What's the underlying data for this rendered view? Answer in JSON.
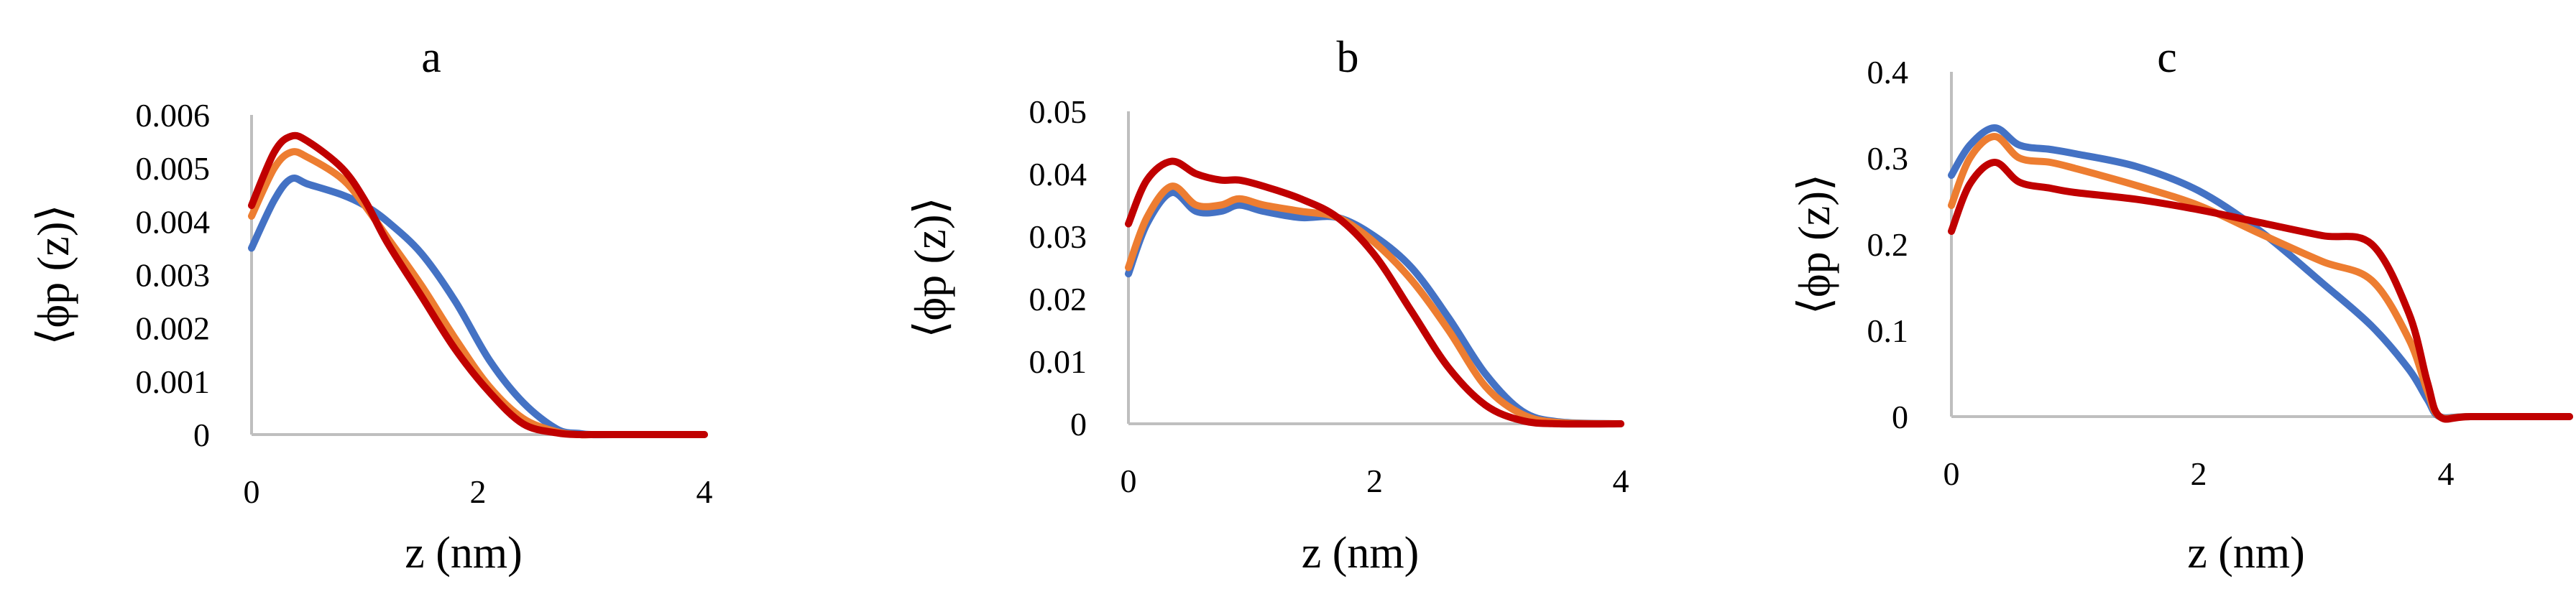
{
  "chart_data": [
    {
      "type": "line",
      "title": "a",
      "xlabel": "z (nm)",
      "ylabel": "⟨ϕp (z)⟩",
      "xlim": [
        0,
        4
      ],
      "ylim": [
        0,
        0.006
      ],
      "xticks": [
        0,
        2,
        4
      ],
      "xtick_labels": [
        "0",
        "2",
        "4"
      ],
      "yticks": [
        0,
        0.001,
        0.002,
        0.003,
        0.004,
        0.005,
        0.006
      ],
      "ytick_labels": [
        "0",
        "0.001",
        "0.002",
        "0.003",
        "0.004",
        "0.005",
        "0.006"
      ],
      "grid": false,
      "series": [
        {
          "name": "series-blue",
          "color": "#4472C4",
          "x": [
            0,
            0.2,
            0.35,
            0.5,
            0.8,
            1.0,
            1.2,
            1.5,
            1.8,
            2.1,
            2.4,
            2.7,
            2.9,
            3.0,
            3.2,
            4.0
          ],
          "y": [
            0.0035,
            0.0044,
            0.0048,
            0.0047,
            0.0045,
            0.0043,
            0.004,
            0.0034,
            0.0025,
            0.0014,
            0.0006,
            0.0001,
            2e-05,
            0.0,
            0.0,
            0.0
          ]
        },
        {
          "name": "series-orange",
          "color": "#ED7D31",
          "x": [
            0,
            0.2,
            0.35,
            0.5,
            0.8,
            1.0,
            1.2,
            1.5,
            1.8,
            2.1,
            2.4,
            2.7,
            2.9,
            3.0,
            3.2,
            4.0
          ],
          "y": [
            0.0041,
            0.005,
            0.0053,
            0.0052,
            0.0048,
            0.0043,
            0.0037,
            0.0028,
            0.0018,
            0.0009,
            0.0003,
            5e-05,
            0.0,
            0.0,
            0.0,
            0.0
          ]
        },
        {
          "name": "series-red",
          "color": "#C00000",
          "x": [
            0,
            0.2,
            0.35,
            0.5,
            0.8,
            1.0,
            1.2,
            1.5,
            1.8,
            2.1,
            2.4,
            2.7,
            2.9,
            3.0,
            3.2,
            4.0
          ],
          "y": [
            0.0043,
            0.0053,
            0.0056,
            0.0055,
            0.005,
            0.0044,
            0.0036,
            0.0026,
            0.0016,
            0.0008,
            0.0002,
            3e-05,
            0.0,
            0.0,
            0.0,
            0.0
          ]
        }
      ]
    },
    {
      "type": "line",
      "title": "b",
      "xlabel": "z (nm)",
      "ylabel": "⟨ϕp (z)⟩",
      "xlim": [
        0,
        4
      ],
      "ylim": [
        0,
        0.05
      ],
      "xticks": [
        0,
        2,
        4
      ],
      "xtick_labels": [
        "0",
        "2",
        "4"
      ],
      "yticks": [
        0,
        0.01,
        0.02,
        0.03,
        0.04,
        0.05
      ],
      "ytick_labels": [
        "0",
        "0.01",
        "0.02",
        "0.03",
        "0.04",
        "0.05"
      ],
      "grid": false,
      "series": [
        {
          "name": "series-blue",
          "color": "#4472C4",
          "x": [
            0,
            0.15,
            0.35,
            0.55,
            0.75,
            0.9,
            1.1,
            1.4,
            1.7,
            2.0,
            2.3,
            2.6,
            2.9,
            3.2,
            3.5,
            4.0
          ],
          "y": [
            0.024,
            0.032,
            0.037,
            0.034,
            0.034,
            0.035,
            0.034,
            0.033,
            0.033,
            0.03,
            0.025,
            0.017,
            0.008,
            0.002,
            0.0003,
            0.0
          ]
        },
        {
          "name": "series-orange",
          "color": "#ED7D31",
          "x": [
            0,
            0.15,
            0.35,
            0.55,
            0.75,
            0.9,
            1.1,
            1.4,
            1.7,
            2.0,
            2.3,
            2.6,
            2.9,
            3.2,
            3.5,
            4.0
          ],
          "y": [
            0.025,
            0.033,
            0.038,
            0.035,
            0.035,
            0.036,
            0.035,
            0.034,
            0.033,
            0.029,
            0.023,
            0.015,
            0.006,
            0.0015,
            0.0002,
            0.0
          ]
        },
        {
          "name": "series-red",
          "color": "#C00000",
          "x": [
            0,
            0.15,
            0.35,
            0.55,
            0.75,
            0.9,
            1.1,
            1.4,
            1.7,
            2.0,
            2.3,
            2.6,
            2.9,
            3.2,
            3.5,
            4.0
          ],
          "y": [
            0.032,
            0.039,
            0.042,
            0.04,
            0.039,
            0.039,
            0.038,
            0.036,
            0.033,
            0.027,
            0.018,
            0.009,
            0.003,
            0.0005,
            0.0,
            0.0
          ]
        }
      ]
    },
    {
      "type": "line",
      "title": "c",
      "xlabel": "z (nm)",
      "ylabel": "⟨ϕp (z)⟩",
      "xlim": [
        0,
        5
      ],
      "ylim": [
        0,
        0.4
      ],
      "xticks": [
        0,
        2,
        4
      ],
      "xtick_labels": [
        "0",
        "2",
        "4"
      ],
      "yticks": [
        0,
        0.1,
        0.2,
        0.3,
        0.4
      ],
      "ytick_labels": [
        "0",
        "0.1",
        "0.2",
        "0.3",
        "0.4"
      ],
      "grid": false,
      "series": [
        {
          "name": "series-blue",
          "color": "#4472C4",
          "x": [
            0,
            0.15,
            0.35,
            0.55,
            0.8,
            1.0,
            1.5,
            2.0,
            2.5,
            3.0,
            3.4,
            3.7,
            3.85,
            3.95,
            4.2,
            5.0
          ],
          "y": [
            0.28,
            0.315,
            0.335,
            0.315,
            0.31,
            0.305,
            0.29,
            0.262,
            0.215,
            0.155,
            0.105,
            0.055,
            0.02,
            0.0,
            0.0,
            0.0
          ]
        },
        {
          "name": "series-orange",
          "color": "#ED7D31",
          "x": [
            0,
            0.15,
            0.35,
            0.55,
            0.8,
            1.0,
            1.5,
            2.0,
            2.5,
            3.0,
            3.4,
            3.7,
            3.85,
            3.95,
            4.2,
            5.0
          ],
          "y": [
            0.245,
            0.3,
            0.325,
            0.3,
            0.295,
            0.288,
            0.268,
            0.245,
            0.212,
            0.18,
            0.158,
            0.09,
            0.03,
            0.0,
            0.0,
            0.0
          ]
        },
        {
          "name": "series-red",
          "color": "#C00000",
          "x": [
            0,
            0.15,
            0.35,
            0.55,
            0.8,
            1.0,
            1.5,
            2.0,
            2.5,
            3.0,
            3.4,
            3.7,
            3.85,
            3.95,
            4.2,
            5.0
          ],
          "y": [
            0.215,
            0.27,
            0.295,
            0.272,
            0.265,
            0.26,
            0.252,
            0.24,
            0.225,
            0.21,
            0.2,
            0.12,
            0.04,
            0.0,
            0.0,
            0.0
          ]
        }
      ]
    }
  ]
}
